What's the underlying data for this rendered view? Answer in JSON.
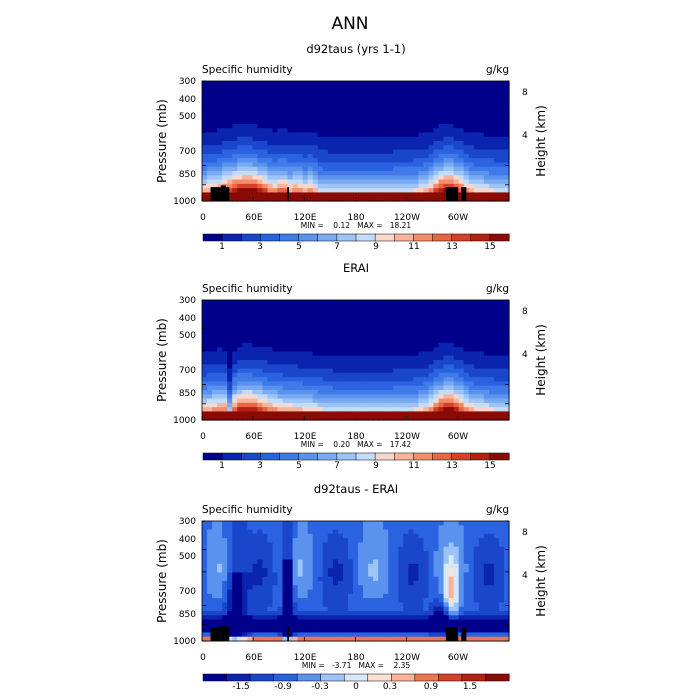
{
  "figure_title": "ANN",
  "chart_data": [
    {
      "type": "heatmap",
      "title": "d92taus (yrs 1-1)",
      "variable_label": "Specific humidity",
      "units_label": "g/kg",
      "ylabel": "Pressure (mb)",
      "y2label": "Height (km)",
      "y_ticks": [
        "300",
        "400",
        "500",
        "700",
        "850",
        "1000"
      ],
      "y_tick_values": [
        300,
        400,
        500,
        700,
        850,
        1000
      ],
      "y2_ticks": [
        "8",
        "4"
      ],
      "y2_tick_values": [
        8,
        4
      ],
      "x_ticks": [
        "0",
        "60E",
        "120E",
        "180",
        "120W",
        "60W"
      ],
      "x_tick_values": [
        0,
        60,
        120,
        180,
        240,
        300
      ],
      "xlim": [
        0,
        360
      ],
      "stats": "MIN =    0.12   MAX =   18.21",
      "min": 0.12,
      "max": 18.21,
      "colorbar_labels": [
        "1",
        "3",
        "5",
        "7",
        "9",
        "11",
        "13",
        "15"
      ],
      "colorbar_levels": [
        0,
        1,
        2,
        3,
        4,
        5,
        6,
        7,
        8,
        9,
        10,
        11,
        12,
        13,
        14,
        15,
        16
      ],
      "field": "full",
      "topography": true
    },
    {
      "type": "heatmap",
      "title": "ERAI",
      "variable_label": "Specific humidity",
      "units_label": "g/kg",
      "ylabel": "Pressure (mb)",
      "y2label": "Height (km)",
      "y_ticks": [
        "300",
        "400",
        "500",
        "700",
        "850",
        "1000"
      ],
      "y_tick_values": [
        300,
        400,
        500,
        700,
        850,
        1000
      ],
      "y2_ticks": [
        "8",
        "4"
      ],
      "y2_tick_values": [
        8,
        4
      ],
      "x_ticks": [
        "0",
        "60E",
        "120E",
        "180",
        "120W",
        "60W"
      ],
      "x_tick_values": [
        0,
        60,
        120,
        180,
        240,
        300
      ],
      "xlim": [
        0,
        360
      ],
      "stats": "MIN =    0.20   MAX =   17.42",
      "min": 0.2,
      "max": 17.42,
      "colorbar_labels": [
        "1",
        "3",
        "5",
        "7",
        "9",
        "11",
        "13",
        "15"
      ],
      "colorbar_levels": [
        0,
        1,
        2,
        3,
        4,
        5,
        6,
        7,
        8,
        9,
        10,
        11,
        12,
        13,
        14,
        15,
        16
      ],
      "field": "full",
      "topography": false
    },
    {
      "type": "heatmap",
      "title": "d92taus - ERAI",
      "variable_label": "Specific humidity",
      "units_label": "g/kg",
      "ylabel": "Pressure (mb)",
      "y2label": "Height (km)",
      "y_ticks": [
        "300",
        "400",
        "500",
        "700",
        "850",
        "1000"
      ],
      "y_tick_values": [
        300,
        400,
        500,
        700,
        850,
        1000
      ],
      "y2_ticks": [
        "8",
        "4"
      ],
      "y2_tick_values": [
        8,
        4
      ],
      "x_ticks": [
        "0",
        "60E",
        "120E",
        "180",
        "120W",
        "60W"
      ],
      "x_tick_values": [
        0,
        60,
        120,
        180,
        240,
        300
      ],
      "xlim": [
        0,
        360
      ],
      "stats": "MIN =   -3.71   MAX =    2.35",
      "min": -3.71,
      "max": 2.35,
      "colorbar_labels": [
        "-1.5",
        "-0.9",
        "-0.3",
        "0",
        "0.3",
        "0.9",
        "1.5"
      ],
      "colorbar_levels": [
        -1.8,
        -1.5,
        -1.2,
        -0.9,
        -0.6,
        -0.3,
        0,
        0.3,
        0.6,
        0.9,
        1.2,
        1.5,
        1.8
      ],
      "field": "diff",
      "topography": true
    }
  ],
  "colors": {
    "blue_red_scale": [
      "#00008b",
      "#0a24b0",
      "#1a46cc",
      "#2a62e0",
      "#3f7ae8",
      "#5a92ee",
      "#7aaaf2",
      "#9cc4f6",
      "#c2dcfa",
      "#f7d8cc",
      "#f7b49a",
      "#f28d6c",
      "#e76545",
      "#d5402b",
      "#b62012",
      "#8a0a05"
    ],
    "diff_scale": [
      "#00008b",
      "#0a24b0",
      "#1a46cc",
      "#2a62e0",
      "#5a92ee",
      "#9cc4f6",
      "#d6e8fc",
      "#fbe0d4",
      "#f7b49a",
      "#ec7654",
      "#d5402b",
      "#b62012",
      "#8a0a05"
    ]
  }
}
